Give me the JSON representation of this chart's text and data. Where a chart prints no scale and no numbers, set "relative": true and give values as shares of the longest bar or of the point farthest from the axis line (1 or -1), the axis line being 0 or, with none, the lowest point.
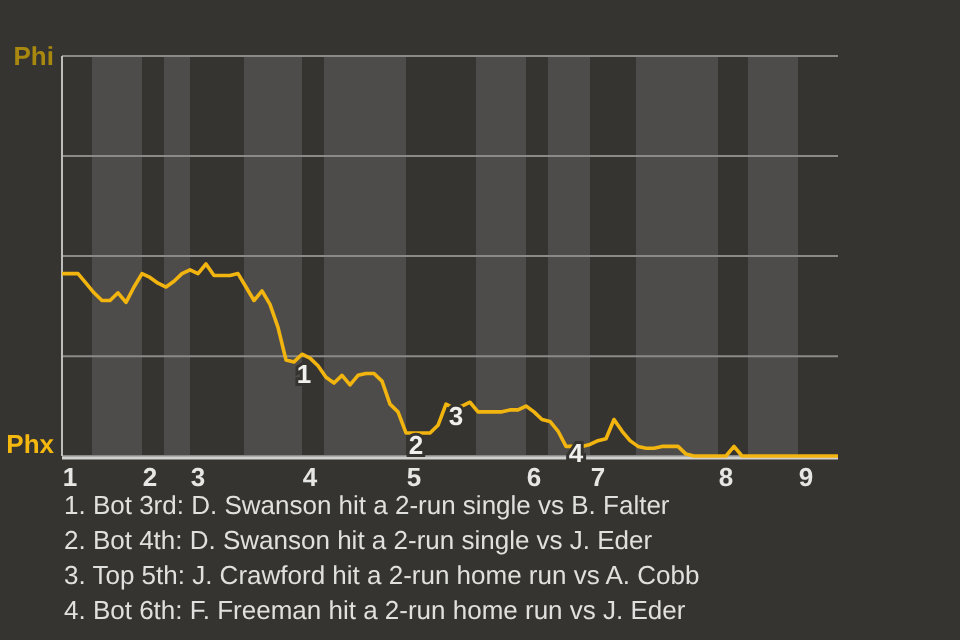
{
  "chart_data": {
    "type": "line",
    "relative": true,
    "categories": [
      null,
      "1",
      null,
      null,
      null,
      null,
      null,
      null,
      null,
      null,
      null,
      "2",
      null,
      null,
      null,
      null,
      null,
      "3",
      null,
      null,
      null,
      null,
      null,
      null,
      null,
      null,
      null,
      null,
      null,
      null,
      null,
      "4",
      null,
      null,
      null,
      null,
      null,
      null,
      null,
      null,
      null,
      null,
      null,
      null,
      "5",
      null,
      null,
      null,
      null,
      null,
      null,
      null,
      null,
      null,
      null,
      null,
      null,
      null,
      null,
      "6",
      null,
      null,
      null,
      null,
      null,
      null,
      null,
      "7",
      null,
      null,
      null,
      null,
      null,
      null,
      null,
      null,
      null,
      null,
      null,
      null,
      null,
      null,
      null,
      "8",
      null,
      null,
      null,
      null,
      null,
      null,
      null,
      null,
      null,
      "9",
      null,
      null,
      null,
      null
    ],
    "series": [
      {
        "color": "#f2b40f",
        "values": [
          0.95,
          0.95,
          0.95,
          0.9,
          0.85,
          0.81,
          0.81,
          0.85,
          0.8,
          0.88,
          0.95,
          0.93,
          0.9,
          0.88,
          0.91,
          0.95,
          0.97,
          0.95,
          1,
          0.94,
          0.94,
          0.94,
          0.95,
          0.88,
          0.81,
          0.86,
          0.79,
          0.67,
          0.5,
          0.49,
          0.53,
          0.51,
          0.47,
          0.41,
          0.38,
          0.42,
          0.37,
          0.42,
          0.43,
          0.43,
          0.39,
          0.27,
          0.23,
          0.12,
          0.12,
          0.12,
          0.12,
          0.16,
          0.27,
          0.25,
          0.26,
          0.28,
          0.23,
          0.23,
          0.23,
          0.23,
          0.24,
          0.24,
          0.26,
          0.23,
          0.19,
          0.18,
          0.13,
          0.05,
          0.05,
          0.05,
          0.06,
          0.08,
          0.09,
          0.19,
          0.13,
          0.08,
          0.05,
          0.04,
          0.04,
          0.05,
          0.05,
          0.05,
          0.01,
          0,
          0,
          0,
          0,
          0,
          0.05,
          0,
          0,
          0,
          0,
          0,
          0,
          0,
          0,
          0,
          0,
          0,
          0,
          0
        ]
      }
    ],
    "marker": "none",
    "ref_lines": [
      {
        "axis": "y",
        "value": 0.52,
        "color": "#8a8a88"
      }
    ],
    "annotations": [
      "Phi",
      "Phx",
      {
        "text": "1",
        "y": 0.49
      },
      {
        "text": "2",
        "y": 0.12
      },
      {
        "text": "3",
        "y": 0.27
      },
      {
        "text": "4",
        "y": 0.05
      },
      "1. Bot 3rd: D. Swanson hit a 2-run single vs B. Falter",
      "2. Bot 4th: D. Swanson hit a 2-run single vs J. Eder",
      "3. Top 5th: J. Crawford hit a 2-run home run vs A. Cobb",
      "4. Bot 6th: F. Freeman hit a 2-run home run vs J. Eder"
    ]
  }
}
